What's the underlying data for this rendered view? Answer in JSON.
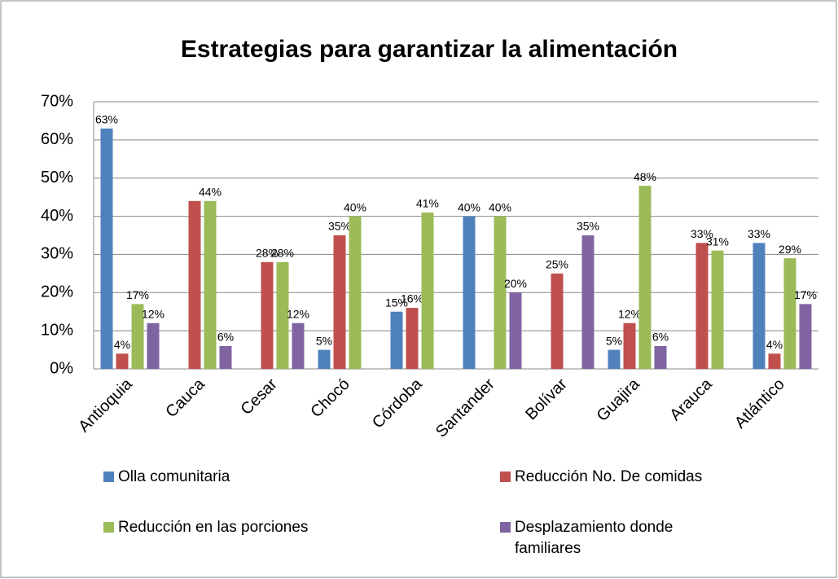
{
  "chart_data": {
    "type": "bar",
    "title": "Estrategias para garantizar la alimentación",
    "categories": [
      "Antioquia",
      "Cauca",
      "Cesar",
      "Chocó",
      "Córdoba",
      "Santander",
      "Bolívar",
      "Guajira",
      "Arauca",
      "Atlántico"
    ],
    "series": [
      {
        "name": "Olla comunitaria",
        "color": "#4f81bd",
        "values": [
          63,
          null,
          null,
          5,
          15,
          40,
          null,
          5,
          null,
          33
        ],
        "value_labels": [
          "63%",
          null,
          null,
          "5%",
          "15%",
          "40%",
          null,
          "5%",
          null,
          "33%"
        ]
      },
      {
        "name": "Reducción No. De comidas",
        "color": "#c0504d",
        "values": [
          4,
          44,
          28,
          35,
          16,
          null,
          25,
          12,
          33,
          4
        ],
        "value_labels": [
          "4%",
          null,
          "28%",
          "35%",
          "16%",
          null,
          "25%",
          "12%",
          "33%",
          "4%"
        ]
      },
      {
        "name": "Reducción en las porciones",
        "color": "#9bbb59",
        "values": [
          17,
          44,
          28,
          40,
          41,
          40,
          null,
          48,
          31,
          29
        ],
        "value_labels": [
          "17%",
          "44%",
          "28%",
          "40%",
          "41%",
          "40%",
          null,
          "48%",
          "31%",
          "29%"
        ]
      },
      {
        "name": "Desplazamiento donde familiares",
        "color": "#8064a2",
        "values": [
          12,
          6,
          12,
          null,
          null,
          20,
          35,
          6,
          null,
          17
        ],
        "value_labels": [
          "12%",
          "6%",
          "12%",
          null,
          null,
          "20%",
          "35%",
          "6%",
          null,
          "17%"
        ]
      }
    ],
    "ylim": [
      0,
      70
    ],
    "yticks": [
      {
        "value": 0,
        "label": "0%"
      },
      {
        "value": 10,
        "label": "10%"
      },
      {
        "value": 20,
        "label": "20%"
      },
      {
        "value": 30,
        "label": "30%"
      },
      {
        "value": 40,
        "label": "40%"
      },
      {
        "value": 50,
        "label": "50%"
      },
      {
        "value": 60,
        "label": "60%"
      },
      {
        "value": 70,
        "label": "70%"
      }
    ],
    "grid": true
  }
}
